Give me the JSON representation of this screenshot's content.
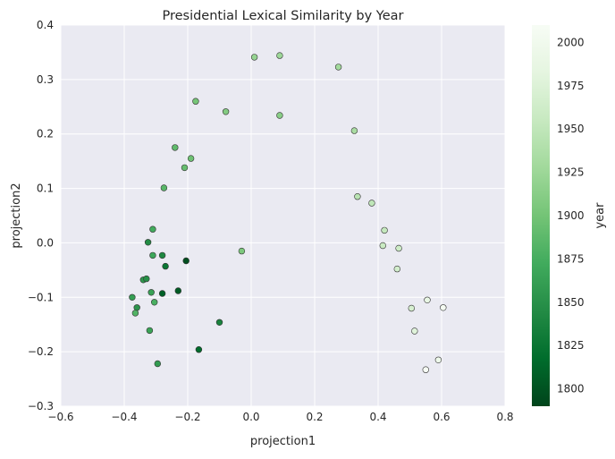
{
  "chart_data": {
    "type": "scatter",
    "title": "Presidential Lexical Similarity by Year",
    "xlabel": "projection1",
    "ylabel": "projection2",
    "xlim": [
      -0.6,
      0.8
    ],
    "ylim": [
      -0.3,
      0.4
    ],
    "x_ticks": [
      "−0.6",
      "−0.4",
      "−0.2",
      "0.0",
      "0.2",
      "0.4",
      "0.6",
      "0.8"
    ],
    "y_ticks": [
      "−0.3",
      "−0.2",
      "−0.1",
      "0.0",
      "0.1",
      "0.2",
      "0.3",
      "0.4"
    ],
    "grid": true,
    "colorbar": {
      "label": "year",
      "range": [
        1790,
        2010
      ],
      "ticks": [
        "1800",
        "1825",
        "1850",
        "1875",
        "1900",
        "1925",
        "1950",
        "1975",
        "2000"
      ],
      "colormap": "Greens_r",
      "color_low": "#00441b",
      "color_high": "#f7fcf5"
    },
    "points": [
      {
        "x": 0.01,
        "y": 0.341,
        "year": 1921
      },
      {
        "x": 0.09,
        "y": 0.344,
        "year": 1925
      },
      {
        "x": 0.275,
        "y": 0.323,
        "year": 1929
      },
      {
        "x": -0.175,
        "y": 0.26,
        "year": 1901
      },
      {
        "x": -0.08,
        "y": 0.241,
        "year": 1909
      },
      {
        "x": 0.09,
        "y": 0.234,
        "year": 1913
      },
      {
        "x": 0.325,
        "y": 0.206,
        "year": 1933
      },
      {
        "x": -0.24,
        "y": 0.175,
        "year": 1889
      },
      {
        "x": -0.19,
        "y": 0.155,
        "year": 1897
      },
      {
        "x": -0.21,
        "y": 0.138,
        "year": 1893
      },
      {
        "x": -0.275,
        "y": 0.101,
        "year": 1885
      },
      {
        "x": 0.335,
        "y": 0.085,
        "year": 1945
      },
      {
        "x": 0.38,
        "y": 0.073,
        "year": 1949
      },
      {
        "x": -0.31,
        "y": 0.025,
        "year": 1873
      },
      {
        "x": 0.42,
        "y": 0.023,
        "year": 1953
      },
      {
        "x": -0.325,
        "y": 0.001,
        "year": 1845
      },
      {
        "x": 0.415,
        "y": -0.005,
        "year": 1957
      },
      {
        "x": 0.465,
        "y": -0.01,
        "year": 1961
      },
      {
        "x": -0.03,
        "y": -0.015,
        "year": 1905
      },
      {
        "x": -0.31,
        "y": -0.023,
        "year": 1869
      },
      {
        "x": -0.28,
        "y": -0.023,
        "year": 1841
      },
      {
        "x": -0.205,
        "y": -0.033,
        "year": 1797
      },
      {
        "x": -0.27,
        "y": -0.043,
        "year": 1825
      },
      {
        "x": 0.46,
        "y": -0.048,
        "year": 1965
      },
      {
        "x": -0.34,
        "y": -0.068,
        "year": 1857
      },
      {
        "x": -0.33,
        "y": -0.066,
        "year": 1849
      },
      {
        "x": -0.23,
        "y": -0.088,
        "year": 1805
      },
      {
        "x": -0.28,
        "y": -0.093,
        "year": 1809
      },
      {
        "x": -0.315,
        "y": -0.091,
        "year": 1865
      },
      {
        "x": -0.375,
        "y": -0.1,
        "year": 1861
      },
      {
        "x": 0.555,
        "y": -0.105,
        "year": 1989
      },
      {
        "x": -0.305,
        "y": -0.109,
        "year": 1877
      },
      {
        "x": -0.36,
        "y": -0.119,
        "year": 1853
      },
      {
        "x": 0.505,
        "y": -0.12,
        "year": 1969
      },
      {
        "x": 0.605,
        "y": -0.119,
        "year": 2005
      },
      {
        "x": -0.365,
        "y": -0.129,
        "year": 1881
      },
      {
        "x": -0.1,
        "y": -0.146,
        "year": 1837
      },
      {
        "x": -0.32,
        "y": -0.161,
        "year": 1866
      },
      {
        "x": 0.515,
        "y": -0.162,
        "year": 1977
      },
      {
        "x": -0.165,
        "y": -0.196,
        "year": 1817
      },
      {
        "x": 0.59,
        "y": -0.215,
        "year": 1997
      },
      {
        "x": -0.295,
        "y": -0.222,
        "year": 1859
      },
      {
        "x": 0.55,
        "y": -0.233,
        "year": 2009
      }
    ]
  }
}
